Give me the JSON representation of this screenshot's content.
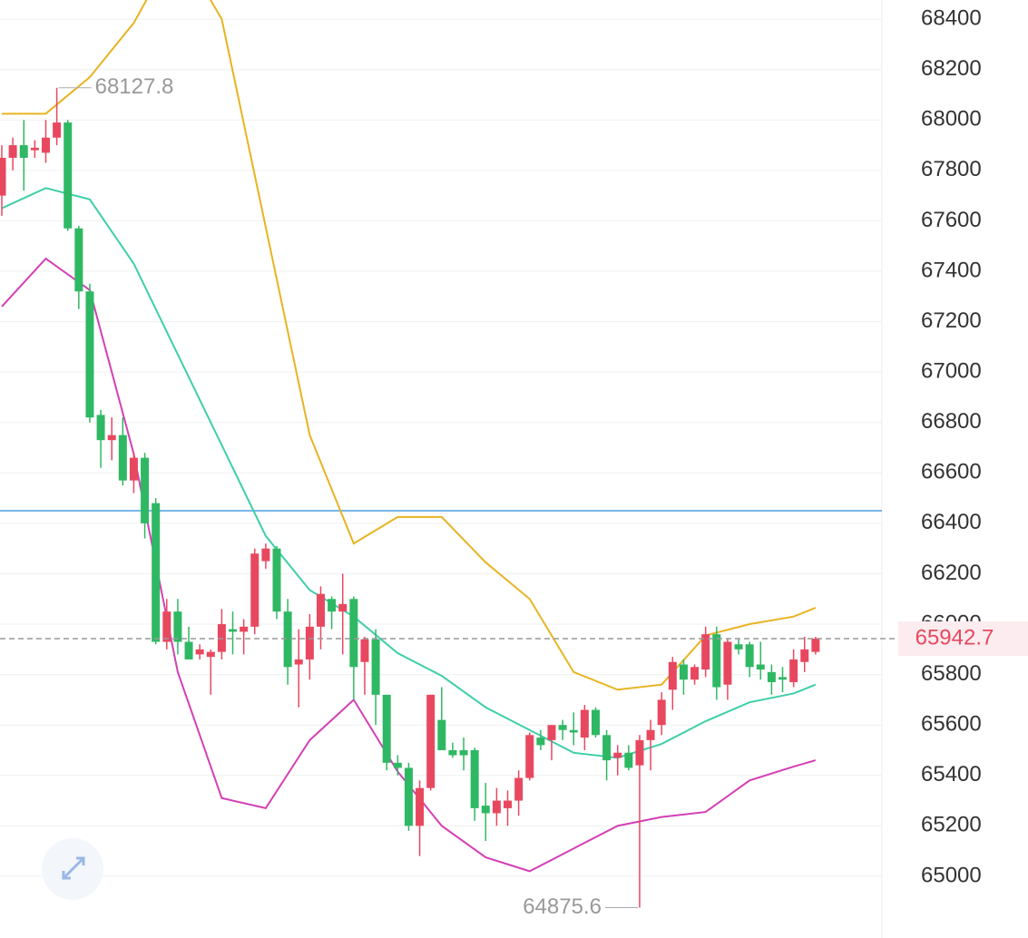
{
  "chart_data": {
    "type": "candlestick",
    "open": [
      67700,
      67850,
      67900,
      67880,
      67870,
      67930,
      67990,
      67570,
      67320,
      66830,
      66730,
      66750,
      66570,
      66660,
      66480,
      65930,
      66050,
      65930,
      65880,
      65870,
      65890,
      65980,
      65970,
      65990,
      66250,
      66300,
      66050,
      65840,
      65860,
      65990,
      66100,
      66050,
      66100,
      65850,
      65940,
      65720,
      65450,
      65430,
      65200,
      65350,
      65620,
      65500,
      65500,
      65500,
      65280,
      65250,
      65270,
      65300,
      65390,
      65550,
      65540,
      65600,
      65580,
      65550,
      65660,
      65560,
      65470,
      65490,
      65440,
      65540,
      65600,
      65740,
      65840,
      65780,
      65820,
      65960,
      65760,
      65920,
      65920,
      65840,
      65810,
      65790,
      65770,
      65850,
      65890
    ],
    "high": [
      67900,
      67930,
      68000,
      67920,
      68000,
      68127.8,
      68000,
      67580,
      67350,
      66850,
      66820,
      66820,
      66680,
      66680,
      66500,
      66100,
      66100,
      65990,
      65920,
      65900,
      66060,
      66050,
      66020,
      66300,
      66320,
      66310,
      66100,
      65980,
      66040,
      66150,
      66110,
      66200,
      66110,
      65950,
      65980,
      65720,
      65480,
      65450,
      65380,
      65720,
      65750,
      65530,
      65550,
      65510,
      65370,
      65350,
      65340,
      65420,
      65570,
      65580,
      65600,
      65620,
      65650,
      65680,
      65670,
      65580,
      65520,
      65520,
      65560,
      65620,
      65730,
      65870,
      65860,
      65840,
      65990,
      65990,
      65940,
      65940,
      65930,
      65930,
      65840,
      65830,
      65900,
      65950,
      65950
    ],
    "low": [
      67620,
      67800,
      67720,
      67850,
      67830,
      67900,
      67560,
      67250,
      66800,
      66620,
      66650,
      66550,
      66520,
      66340,
      65920,
      65900,
      65880,
      65860,
      65860,
      65720,
      65860,
      65880,
      65880,
      65960,
      66220,
      66020,
      65760,
      65670,
      65780,
      65900,
      65980,
      65880,
      65700,
      65720,
      65600,
      65420,
      65400,
      65180,
      65080,
      65340,
      65520,
      65470,
      65420,
      65220,
      65140,
      65200,
      65200,
      65240,
      65380,
      65500,
      65460,
      65540,
      65520,
      65500,
      65550,
      65380,
      65400,
      65420,
      64875.6,
      65420,
      65560,
      65660,
      65720,
      65760,
      65790,
      65700,
      65700,
      65880,
      65790,
      65780,
      65720,
      65730,
      65750,
      65810,
      65880
    ],
    "close": [
      67850,
      67900,
      67850,
      67890,
      67930,
      67990,
      67570,
      67320,
      66820,
      66730,
      66750,
      66570,
      66660,
      66400,
      65930,
      66050,
      65930,
      65860,
      65900,
      65890,
      66000,
      65970,
      65990,
      66280,
      66300,
      66050,
      65830,
      65860,
      65990,
      66120,
      66050,
      66080,
      65830,
      65940,
      65720,
      65450,
      65430,
      65200,
      65350,
      65720,
      65500,
      65480,
      65480,
      65270,
      65250,
      65300,
      65300,
      65390,
      65560,
      65520,
      65600,
      65580,
      65570,
      65660,
      65560,
      65460,
      65490,
      65430,
      65540,
      65580,
      65700,
      65850,
      65780,
      65830,
      65960,
      65750,
      65930,
      65900,
      65830,
      65820,
      65770,
      65780,
      65860,
      65900,
      65942.7
    ],
    "up_color": "#e8485f",
    "down_color": "#2fb863",
    "bands": [
      {
        "color": "#e8b422",
        "x": [
          0,
          4,
          8,
          12,
          16,
          20,
          24,
          28,
          32,
          36,
          40,
          44,
          48,
          52,
          56,
          60,
          64,
          68,
          72,
          74
        ],
        "values": [
          68025,
          68025,
          68170,
          68385,
          68700,
          68400,
          67575,
          66750,
          66320,
          66425,
          66425,
          66245,
          66100,
          65810,
          65740,
          65760,
          65955,
          66000,
          66030,
          66065
        ]
      },
      {
        "color": "#3ecfa8",
        "x": [
          0,
          4,
          8,
          12,
          16,
          20,
          24,
          28,
          32,
          36,
          40,
          44,
          48,
          52,
          56,
          60,
          64,
          68,
          72,
          74
        ],
        "values": [
          67650,
          67730,
          67685,
          67430,
          67070,
          66710,
          66350,
          66135,
          66030,
          65885,
          65795,
          65670,
          65580,
          65490,
          65470,
          65525,
          65615,
          65690,
          65725,
          65760
        ]
      },
      {
        "color": "#d43fb5",
        "x": [
          0,
          4,
          8,
          12,
          16,
          20,
          24,
          28,
          32,
          36,
          40,
          44,
          48,
          52,
          56,
          60,
          64,
          68,
          72,
          74
        ],
        "values": [
          67260,
          67450,
          67325,
          66675,
          65810,
          65310,
          65270,
          65540,
          65700,
          65415,
          65200,
          65075,
          65020,
          65110,
          65200,
          65235,
          65255,
          65380,
          65435,
          65460
        ]
      }
    ],
    "reference_line": 66450,
    "reference_color": "#4a9fe0",
    "ylim": [
      64755,
      68476
    ],
    "yticks": [
      65000,
      65200,
      65400,
      65600,
      65800,
      66000,
      66200,
      66400,
      66600,
      66800,
      67000,
      67200,
      67400,
      67600,
      67800,
      68000,
      68200,
      68400
    ],
    "grid": true
  }
}
